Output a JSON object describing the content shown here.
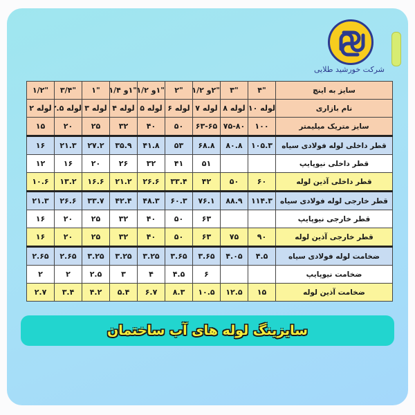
{
  "brand": {
    "company_name": "شرکت خورشید طلایی",
    "logo_icon": "interlocked-knot-logo",
    "logo_colors": [
      "#f7cc1e",
      "#2c3a8f"
    ]
  },
  "table": {
    "rows": [
      {
        "label": "سایز به اینچ",
        "color": "peach",
        "cells": [
          "\"۴",
          "\"۳",
          "\"۲و ۱/۲",
          "\"۲",
          "\"۱و ۱/۲",
          "\"۱و ۱/۴",
          "\"۱",
          "\"۳/۴",
          "\"۱/۲"
        ]
      },
      {
        "label": "نام بازاری",
        "color": "peach",
        "cells": [
          "لوله ۱۰",
          "لوله ۸",
          "لوله ۷",
          "لوله ۶",
          "لوله ۵",
          "لوله ۴",
          "لوله ۳",
          "لوله ۲.۵",
          "لوله ۲"
        ]
      },
      {
        "label": "سایز متریک میلیمتر",
        "color": "peach",
        "cells": [
          "۱۰۰",
          "۷۵-۸۰",
          "۶۳-۶۵",
          "۵۰",
          "۴۰",
          "۳۲",
          "۲۵",
          "۲۰",
          "۱۵"
        ]
      },
      {
        "label": "قطر داخلی لوله فولادی سیاه",
        "color": "blue",
        "cells": [
          "۱۰۵.۳",
          "۸۰.۸",
          "۶۸.۸",
          "۵۳",
          "۴۱.۸",
          "۳۵.۹",
          "۲۷.۲",
          "۲۱.۳",
          "۱۶"
        ]
      },
      {
        "label": "قطر داخلی نیوپایپ",
        "color": "white",
        "cells": [
          "",
          "",
          "۵۱",
          "۴۱",
          "۳۲",
          "۲۶",
          "۲۰",
          "۱۶",
          "۱۲"
        ]
      },
      {
        "label": "قطر داخلی آذین لوله",
        "color": "yellow",
        "cells": [
          "۶۰",
          "۵۰",
          "۴۲",
          "۳۳.۴",
          "۲۶.۶",
          "۲۱.۲",
          "۱۶.۶",
          "۱۳.۲",
          "۱۰.۶"
        ]
      },
      {
        "label": "قطر خارجی لوله فولادی سیاه",
        "color": "blue",
        "cells": [
          "۱۱۴.۳",
          "۸۸.۹",
          "۷۶.۱",
          "۶۰.۳",
          "۴۸.۳",
          "۴۲.۴",
          "۳۳.۷",
          "۲۶.۶",
          "۲۱.۳"
        ]
      },
      {
        "label": "قطر خارجی نیوپایپ",
        "color": "white",
        "cells": [
          "",
          "",
          "۶۳",
          "۵۰",
          "۴۰",
          "۳۲",
          "۲۵",
          "۲۰",
          "۱۶"
        ]
      },
      {
        "label": "قطر خارجی آذین لوله",
        "color": "yellow",
        "cells": [
          "۹۰",
          "۷۵",
          "۶۳",
          "۵۰",
          "۴۰",
          "۳۲",
          "۲۵",
          "۲۰",
          "۱۶"
        ]
      },
      {
        "label": "ضخامت لوله فولادی سیاه",
        "color": "blue",
        "cells": [
          "۴.۵",
          "۴.۰۵",
          "۳.۶۵",
          "۳.۶۵",
          "۳.۲۵",
          "۳.۲۵",
          "۳.۲۵",
          "۲.۶۵",
          "۲.۶۵"
        ]
      },
      {
        "label": "ضخامت نیوپایپ",
        "color": "white",
        "cells": [
          "",
          "",
          "۶",
          "۴.۵",
          "۴",
          "۳",
          "۲.۵",
          "۲",
          "۲"
        ]
      },
      {
        "label": "ضخامت آذین لوله",
        "color": "yellow",
        "cells": [
          "۱۵",
          "۱۲.۵",
          "۱۰.۵",
          "۸.۳",
          "۶.۷",
          "۵.۴",
          "۴.۲",
          "۳.۴",
          "۲.۷"
        ]
      }
    ]
  },
  "banner": {
    "title": "سایزینگ لوله های آب ساختمان",
    "color": "#22d5cf"
  }
}
